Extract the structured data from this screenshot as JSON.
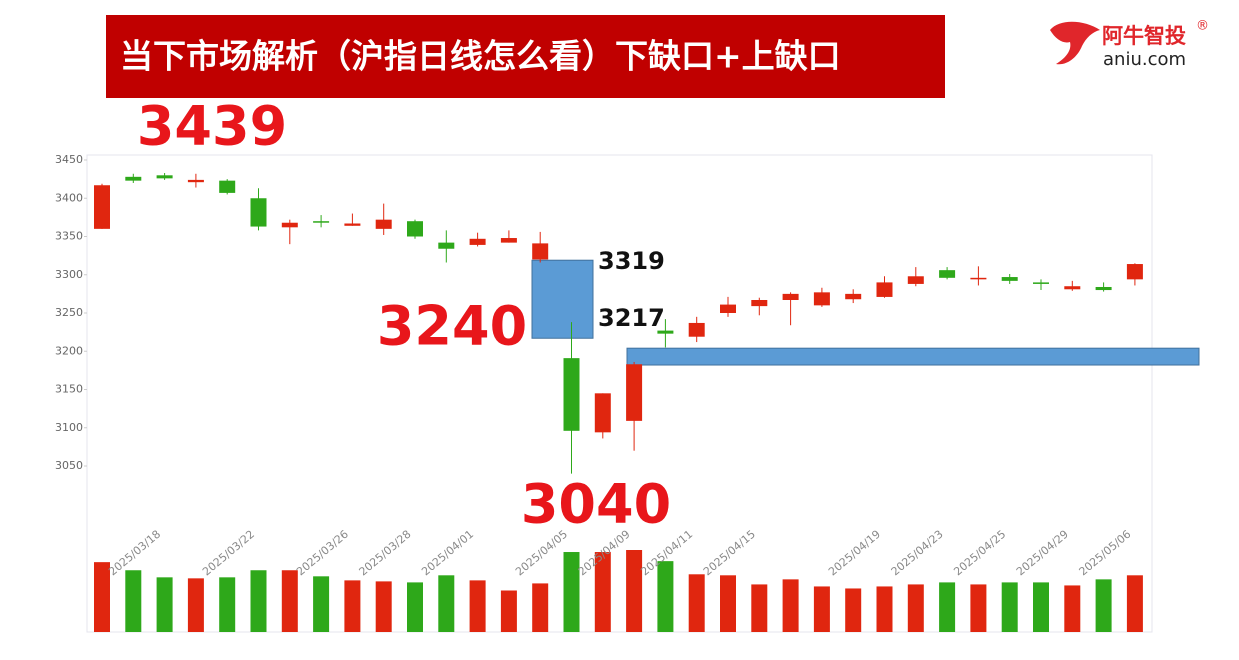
{
  "logo": {
    "name": "阿牛智投",
    "mark": "®",
    "site": "aniu.com"
  },
  "chart_data": {
    "type": "candlestick",
    "title": "当下市场解析（沪指日线怎么看）下缺口+上缺口",
    "categories": [
      null,
      "2025/03/18",
      null,
      null,
      "2025/03/22",
      null,
      null,
      "2025/03/26",
      null,
      "2025/03/28",
      null,
      "2025/04/01",
      null,
      null,
      "2025/04/05",
      null,
      "2025/04/09",
      null,
      "2025/04/11",
      null,
      "2025/04/15",
      null,
      null,
      null,
      "2025/04/19",
      null,
      "2025/04/23",
      null,
      "2025/04/25",
      null,
      "2025/04/29",
      null,
      "2025/05/06",
      null
    ],
    "open": [
      3360,
      3428,
      3430,
      3421,
      3423,
      3400,
      3362,
      3370,
      3364,
      3360,
      3370,
      3342,
      3339,
      3342,
      3320,
      3191,
      3094,
      3109,
      3227,
      3219,
      3250,
      3259,
      3267,
      3260,
      3268,
      3271,
      3288,
      3306,
      3294,
      3297,
      3290,
      3281,
      3284,
      3294
    ],
    "high": [
      3419,
      3432,
      3433,
      3432,
      3425,
      3413,
      3372,
      3378,
      3380,
      3393,
      3372,
      3358,
      3355,
      3358,
      3356,
      3238,
      3145,
      3186,
      3242,
      3245,
      3271,
      3270,
      3277,
      3283,
      3281,
      3298,
      3310,
      3310,
      3311,
      3301,
      3294,
      3292,
      3290,
      3315
    ],
    "low": [
      3360,
      3420,
      3424,
      3414,
      3405,
      3358,
      3340,
      3362,
      3364,
      3352,
      3347,
      3316,
      3337,
      3342,
      3316,
      3040,
      3086,
      3070,
      3205,
      3212,
      3245,
      3247,
      3234,
      3258,
      3263,
      3270,
      3285,
      3294,
      3286,
      3288,
      3280,
      3279,
      3278,
      3286
    ],
    "close": [
      3417,
      3423,
      3426,
      3424,
      3407,
      3363,
      3368,
      3369,
      3367,
      3372,
      3350,
      3334,
      3347,
      3348,
      3341,
      3096,
      3145,
      3183,
      3223,
      3237,
      3261,
      3267,
      3275,
      3277,
      3275,
      3290,
      3298,
      3296,
      3296,
      3292,
      3288,
      3285,
      3280,
      3314
    ],
    "volumes": [
      69,
      61,
      54,
      53,
      54,
      61,
      61,
      55,
      51,
      50,
      49,
      56,
      51,
      41,
      48,
      79,
      79,
      81,
      70,
      57,
      56,
      47,
      52,
      45,
      43,
      45,
      47,
      49,
      47,
      49,
      49,
      46,
      52,
      56
    ],
    "up_color": "#e0260f",
    "down_color": "#2ea81a",
    "gap_color": "#5b9bd5",
    "ylim": [
      3010,
      3460
    ],
    "yticks": [
      3050,
      3100,
      3150,
      3200,
      3250,
      3300,
      3350,
      3400,
      3450
    ],
    "grid": false,
    "gaps": [
      {
        "high": 3319,
        "low": 3217
      },
      {
        "high": 3204,
        "low": 3182
      }
    ],
    "annotations": [
      "3439",
      "3240",
      "3040"
    ]
  }
}
